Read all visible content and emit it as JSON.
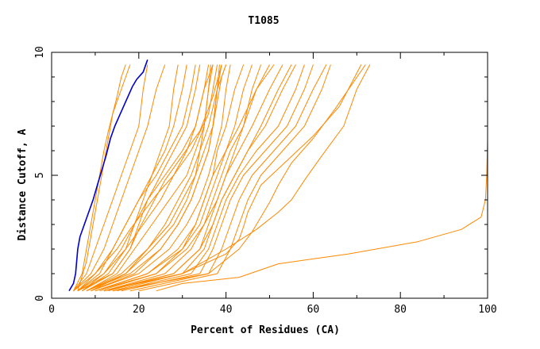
{
  "chart_data": {
    "type": "line",
    "title": "T1085",
    "xlabel": "Percent of Residues (CA)",
    "ylabel": "Distance Cutoff, A",
    "xlim": [
      0,
      100
    ],
    "ylim": [
      0,
      10
    ],
    "x_ticks": [
      "0",
      "20",
      "40",
      "60",
      "80",
      "100"
    ],
    "y_ticks": [
      "0",
      "5",
      "10"
    ],
    "grid": false,
    "legend": "none",
    "colors": {
      "highlight": "#0000cc",
      "others": "#ff8800"
    },
    "series": [
      {
        "highlight": true,
        "x": [
          4.0,
          5.0,
          5.5,
          6.0,
          6.5,
          7.5,
          8.5,
          9.5,
          10.5,
          11.5,
          12.5,
          13.5,
          14.5,
          15.5,
          16.5,
          17.5,
          18.5,
          19.5,
          21.0,
          22.0
        ],
        "y": [
          0.3,
          0.6,
          1.0,
          2.0,
          2.5,
          3.0,
          3.5,
          4.0,
          4.6,
          5.2,
          5.8,
          6.5,
          7.0,
          7.4,
          7.8,
          8.2,
          8.6,
          8.9,
          9.2,
          9.7
        ]
      },
      {
        "highlight": false,
        "x": [
          24,
          30,
          43,
          52,
          68,
          84,
          94,
          98.5,
          99.5,
          99.8,
          100,
          100,
          100
        ],
        "y": [
          0.3,
          0.6,
          0.85,
          1.4,
          1.8,
          2.3,
          2.8,
          3.3,
          4.0,
          5.0,
          6.5,
          8.0,
          9.5
        ]
      },
      {
        "highlight": false,
        "x": [
          5,
          7,
          8,
          9,
          10,
          11,
          12,
          13,
          14,
          15,
          16,
          17,
          18
        ],
        "y": [
          0.3,
          1.0,
          2.0,
          3.0,
          4.0,
          5.0,
          6.0,
          6.8,
          7.5,
          8.0,
          8.5,
          9.0,
          9.5
        ]
      },
      {
        "highlight": false,
        "x": [
          6,
          8,
          9,
          10,
          11,
          12,
          13,
          14,
          15,
          16,
          17
        ],
        "y": [
          0.3,
          1.5,
          2.5,
          3.5,
          4.5,
          5.5,
          6.5,
          7.5,
          8.2,
          9.0,
          9.5
        ]
      },
      {
        "highlight": false,
        "x": [
          6,
          10,
          14,
          17,
          20,
          24,
          27,
          30,
          32,
          33
        ],
        "y": [
          0.3,
          1.0,
          2.0,
          3.0,
          4.0,
          5.0,
          6.0,
          7.0,
          8.5,
          9.5
        ]
      },
      {
        "highlight": false,
        "x": [
          7,
          12,
          17,
          21,
          25,
          28,
          31,
          33,
          35,
          36
        ],
        "y": [
          0.3,
          1.0,
          2.0,
          3.0,
          4.0,
          5.0,
          6.0,
          7.0,
          8.5,
          9.5
        ]
      },
      {
        "highlight": false,
        "x": [
          5,
          10,
          15,
          18,
          21,
          24,
          28,
          32,
          36,
          38
        ],
        "y": [
          0.3,
          1.0,
          2.0,
          2.8,
          3.5,
          4.2,
          5.0,
          6.0,
          7.5,
          9.5
        ]
      },
      {
        "highlight": false,
        "x": [
          8,
          16,
          22,
          27,
          30,
          33,
          35,
          37,
          38,
          39
        ],
        "y": [
          0.3,
          1.0,
          2.0,
          3.0,
          4.0,
          5.0,
          6.0,
          7.0,
          8.5,
          9.5
        ]
      },
      {
        "highlight": false,
        "x": [
          8,
          18,
          25,
          29,
          32,
          34,
          36,
          37,
          38,
          39,
          40
        ],
        "y": [
          0.3,
          1.0,
          2.0,
          3.0,
          4.0,
          5.0,
          6.0,
          7.0,
          8.0,
          9.0,
          9.5
        ]
      },
      {
        "highlight": false,
        "x": [
          9,
          20,
          27,
          31,
          34,
          36,
          37.5,
          39,
          40,
          41
        ],
        "y": [
          0.3,
          1.0,
          2.0,
          3.0,
          4.0,
          5.0,
          6.0,
          7.0,
          8.5,
          9.5
        ]
      },
      {
        "highlight": false,
        "x": [
          10,
          22,
          29,
          33,
          35,
          37,
          38,
          40,
          42,
          44
        ],
        "y": [
          0.3,
          1.0,
          2.0,
          3.0,
          4.0,
          5.0,
          6.0,
          7.0,
          8.5,
          9.5
        ]
      },
      {
        "highlight": false,
        "x": [
          10,
          24,
          30,
          34,
          36,
          38,
          40,
          42,
          44,
          46
        ],
        "y": [
          0.3,
          1.0,
          2.0,
          3.0,
          4.0,
          5.0,
          6.0,
          7.0,
          8.5,
          9.5
        ]
      },
      {
        "highlight": false,
        "x": [
          12,
          26,
          32,
          35,
          37,
          39,
          41,
          44,
          47,
          50
        ],
        "y": [
          0.3,
          1.0,
          2.0,
          3.0,
          4.0,
          5.0,
          6.0,
          7.0,
          8.5,
          9.5
        ]
      },
      {
        "highlight": false,
        "x": [
          12,
          28,
          34,
          36,
          38,
          40,
          43,
          46,
          50,
          53
        ],
        "y": [
          0.3,
          1.0,
          2.0,
          3.0,
          4.0,
          5.0,
          6.0,
          7.0,
          8.5,
          9.5
        ]
      },
      {
        "highlight": false,
        "x": [
          14,
          30,
          35,
          37,
          39,
          42,
          45,
          49,
          53,
          56
        ],
        "y": [
          0.3,
          1.0,
          2.0,
          3.0,
          4.0,
          5.0,
          6.0,
          7.0,
          8.5,
          9.5
        ]
      },
      {
        "highlight": false,
        "x": [
          15,
          32,
          36,
          38,
          40,
          43,
          47,
          52,
          56,
          58
        ],
        "y": [
          0.3,
          1.0,
          2.0,
          3.0,
          4.0,
          5.0,
          6.0,
          7.0,
          8.5,
          9.5
        ]
      },
      {
        "highlight": false,
        "x": [
          16,
          34,
          37,
          39,
          41,
          44,
          49,
          54,
          58,
          60
        ],
        "y": [
          0.3,
          1.0,
          2.0,
          3.0,
          4.0,
          5.0,
          6.0,
          7.0,
          8.5,
          9.5
        ]
      },
      {
        "highlight": false,
        "x": [
          18,
          36,
          39,
          41,
          43,
          46,
          51,
          56,
          60,
          63
        ],
        "y": [
          0.3,
          1.0,
          2.0,
          3.0,
          4.0,
          5.0,
          6.0,
          7.0,
          8.5,
          9.5
        ]
      },
      {
        "highlight": false,
        "x": [
          20,
          38,
          41,
          43,
          45,
          48,
          53,
          58,
          62,
          64
        ],
        "y": [
          0.3,
          1.0,
          2.0,
          3.0,
          4.0,
          5.0,
          6.0,
          7.0,
          8.5,
          9.5
        ]
      },
      {
        "highlight": false,
        "x": [
          12,
          30,
          40,
          47,
          52,
          55,
          58,
          62,
          67,
          70,
          73
        ],
        "y": [
          0.3,
          1.0,
          2.0,
          2.8,
          3.5,
          4.0,
          4.8,
          5.8,
          7.0,
          8.5,
          9.5
        ]
      },
      {
        "highlight": false,
        "x": [
          14,
          36,
          43,
          46,
          48,
          50,
          52,
          55,
          60,
          65,
          72
        ],
        "y": [
          0.3,
          1.0,
          2.0,
          2.7,
          3.3,
          3.9,
          4.6,
          5.5,
          6.5,
          7.7,
          9.5
        ]
      },
      {
        "highlight": false,
        "x": [
          12,
          30,
          40,
          43,
          44,
          45,
          48,
          54,
          60,
          66,
          71
        ],
        "y": [
          0.3,
          1.0,
          1.8,
          2.4,
          2.9,
          3.5,
          4.6,
          5.6,
          6.6,
          7.8,
          9.5
        ]
      },
      {
        "highlight": false,
        "x": [
          6,
          12,
          16,
          19,
          22,
          26,
          30,
          33,
          35,
          37
        ],
        "y": [
          0.3,
          1.0,
          2.0,
          3.0,
          4.0,
          5.0,
          6.0,
          7.0,
          8.5,
          9.5
        ]
      },
      {
        "highlight": false,
        "x": [
          6,
          14,
          18,
          20,
          22,
          25,
          28,
          31,
          33,
          34
        ],
        "y": [
          0.3,
          1.0,
          2.0,
          3.0,
          4.0,
          5.0,
          6.0,
          7.0,
          8.5,
          9.5
        ]
      },
      {
        "highlight": false,
        "x": [
          7,
          13,
          17,
          19,
          21,
          23,
          25,
          27,
          28,
          29
        ],
        "y": [
          0.3,
          1.0,
          2.0,
          3.0,
          4.0,
          5.0,
          6.0,
          7.0,
          8.5,
          9.5
        ]
      },
      {
        "highlight": false,
        "x": [
          7,
          14,
          18,
          20,
          23,
          26,
          30,
          34,
          37,
          39
        ],
        "y": [
          0.3,
          1.0,
          2.0,
          2.8,
          3.8,
          4.8,
          5.8,
          6.8,
          8.2,
          9.5
        ]
      },
      {
        "highlight": false,
        "x": [
          8,
          15,
          19,
          23,
          27,
          31,
          33,
          35,
          36,
          37
        ],
        "y": [
          0.3,
          1.0,
          2.0,
          3.0,
          4.0,
          5.0,
          6.0,
          7.0,
          8.5,
          9.5
        ]
      },
      {
        "highlight": false,
        "x": [
          9,
          17,
          22,
          26,
          29,
          32,
          34,
          36,
          38,
          40
        ],
        "y": [
          0.3,
          1.0,
          2.0,
          3.0,
          4.0,
          5.0,
          6.0,
          7.0,
          8.5,
          9.5
        ]
      },
      {
        "highlight": false,
        "x": [
          5,
          9,
          12,
          14,
          16,
          18,
          20,
          22,
          24,
          26
        ],
        "y": [
          0.3,
          1.0,
          2.0,
          3.0,
          4.0,
          5.0,
          6.0,
          7.0,
          8.5,
          9.5
        ]
      },
      {
        "highlight": false,
        "x": [
          5,
          8,
          10,
          12,
          14,
          16,
          18,
          20,
          21,
          22
        ],
        "y": [
          0.3,
          1.0,
          2.0,
          3.0,
          4.0,
          5.0,
          6.0,
          7.0,
          8.5,
          9.5
        ]
      },
      {
        "highlight": false,
        "x": [
          11,
          24,
          31,
          35,
          38,
          40,
          42,
          44,
          46,
          48
        ],
        "y": [
          0.3,
          1.0,
          2.0,
          3.0,
          4.0,
          5.0,
          6.0,
          7.0,
          8.5,
          9.5
        ]
      },
      {
        "highlight": false,
        "x": [
          10,
          22,
          30,
          33,
          35,
          37,
          40,
          43,
          47,
          51
        ],
        "y": [
          0.3,
          1.0,
          2.0,
          3.0,
          4.0,
          5.0,
          6.0,
          7.0,
          8.5,
          9.5
        ]
      },
      {
        "highlight": false,
        "x": [
          13,
          28,
          34,
          37,
          39,
          42,
          45,
          48,
          52,
          55
        ],
        "y": [
          0.3,
          1.0,
          2.0,
          3.0,
          4.0,
          5.0,
          6.0,
          7.0,
          8.5,
          9.5
        ]
      },
      {
        "highlight": false,
        "x": [
          9,
          19,
          25,
          29,
          32,
          34,
          36,
          37,
          38,
          38.5
        ],
        "y": [
          0.3,
          1.0,
          2.0,
          3.0,
          4.0,
          5.0,
          6.0,
          7.0,
          8.5,
          9.5
        ]
      },
      {
        "highlight": false,
        "x": [
          6,
          11,
          14,
          17,
          20,
          23,
          26,
          28,
          30,
          31
        ],
        "y": [
          0.3,
          1.0,
          2.0,
          3.0,
          4.0,
          5.0,
          6.0,
          7.0,
          8.5,
          9.5
        ]
      },
      {
        "highlight": false,
        "x": [
          8,
          17,
          23,
          28,
          31,
          33,
          34,
          35,
          36,
          36.5
        ],
        "y": [
          0.3,
          1.0,
          2.0,
          3.0,
          4.0,
          5.0,
          6.0,
          7.0,
          8.5,
          9.5
        ]
      }
    ]
  }
}
